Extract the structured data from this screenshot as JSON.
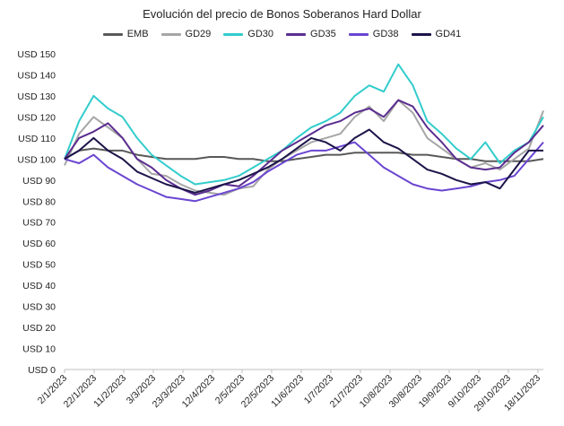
{
  "chart_data": {
    "type": "line",
    "title": "Evolución del precio de Bonos Soberanos Hard Dollar",
    "xlabel": "",
    "ylabel": "",
    "ylim": [
      0,
      150
    ],
    "y_ticks": [
      "USD 0",
      "USD 10",
      "USD 20",
      "USD 30",
      "USD 40",
      "USD 50",
      "USD 60",
      "USD 70",
      "USD 80",
      "USD 90",
      "USD 100",
      "USD 110",
      "USD 120",
      "USD 130",
      "USD 140",
      "USD 150"
    ],
    "x_tick_labels": [
      "2/1/2023",
      "22/1/2023",
      "11/2/2023",
      "3/3/2023",
      "23/3/2023",
      "12/4/2023",
      "2/5/2023",
      "22/5/2023",
      "11/6/2023",
      "1/7/2023",
      "21/7/2023",
      "10/8/2023",
      "30/8/2023",
      "19/9/2023",
      "9/10/2023",
      "29/10/2023",
      "18/11/2023"
    ],
    "legend_position": "top",
    "grid": false,
    "x": [
      "2/1/2023",
      "12/1/2023",
      "22/1/2023",
      "1/2/2023",
      "11/2/2023",
      "21/2/2023",
      "3/3/2023",
      "13/3/2023",
      "23/3/2023",
      "2/4/2023",
      "12/4/2023",
      "22/4/2023",
      "2/5/2023",
      "12/5/2023",
      "22/5/2023",
      "1/6/2023",
      "11/6/2023",
      "21/6/2023",
      "1/7/2023",
      "11/7/2023",
      "21/7/2023",
      "31/7/2023",
      "10/8/2023",
      "20/8/2023",
      "30/8/2023",
      "9/9/2023",
      "19/9/2023",
      "29/9/2023",
      "9/10/2023",
      "19/10/2023",
      "29/10/2023",
      "8/11/2023",
      "18/11/2023",
      "23/11/2023"
    ],
    "series": [
      {
        "name": "EMB",
        "color": "#595959",
        "values": [
          100,
          104,
          105,
          104,
          104,
          102,
          101,
          100,
          100,
          100,
          101,
          101,
          100,
          100,
          99,
          99,
          100,
          101,
          102,
          102,
          103,
          103,
          103,
          103,
          102,
          102,
          101,
          100,
          100,
          99,
          99,
          99,
          99,
          100
        ]
      },
      {
        "name": "GD29",
        "color": "#a6a6a6",
        "values": [
          97,
          112,
          120,
          115,
          110,
          100,
          93,
          92,
          88,
          85,
          84,
          83,
          86,
          87,
          95,
          100,
          104,
          108,
          110,
          112,
          120,
          125,
          118,
          128,
          122,
          110,
          105,
          100,
          96,
          98,
          95,
          100,
          105,
          123
        ]
      },
      {
        "name": "GD30",
        "color": "#33cccc",
        "values": [
          100,
          118,
          130,
          124,
          120,
          110,
          102,
          97,
          92,
          88,
          89,
          90,
          92,
          96,
          100,
          104,
          110,
          115,
          118,
          122,
          130,
          135,
          132,
          145,
          135,
          118,
          112,
          105,
          100,
          108,
          98,
          104,
          108,
          120
        ]
      },
      {
        "name": "GD35",
        "color": "#5b2d90",
        "values": [
          100,
          110,
          113,
          117,
          110,
          100,
          96,
          90,
          86,
          83,
          85,
          88,
          87,
          92,
          98,
          104,
          108,
          112,
          116,
          118,
          122,
          124,
          120,
          128,
          125,
          115,
          108,
          100,
          96,
          95,
          96,
          103,
          108,
          116
        ]
      },
      {
        "name": "GD38",
        "color": "#6a45d1",
        "values": [
          100,
          98,
          102,
          96,
          92,
          88,
          85,
          82,
          81,
          80,
          82,
          84,
          86,
          89,
          94,
          98,
          102,
          104,
          104,
          106,
          108,
          102,
          96,
          92,
          88,
          86,
          85,
          86,
          87,
          89,
          90,
          92,
          100,
          108
        ]
      },
      {
        "name": "GD41",
        "color": "#1c1449",
        "values": [
          100,
          104,
          110,
          104,
          100,
          94,
          91,
          88,
          86,
          84,
          86,
          88,
          90,
          93,
          96,
          100,
          105,
          110,
          108,
          104,
          110,
          114,
          108,
          105,
          100,
          95,
          93,
          90,
          88,
          89,
          86,
          95,
          104,
          104
        ]
      }
    ]
  }
}
